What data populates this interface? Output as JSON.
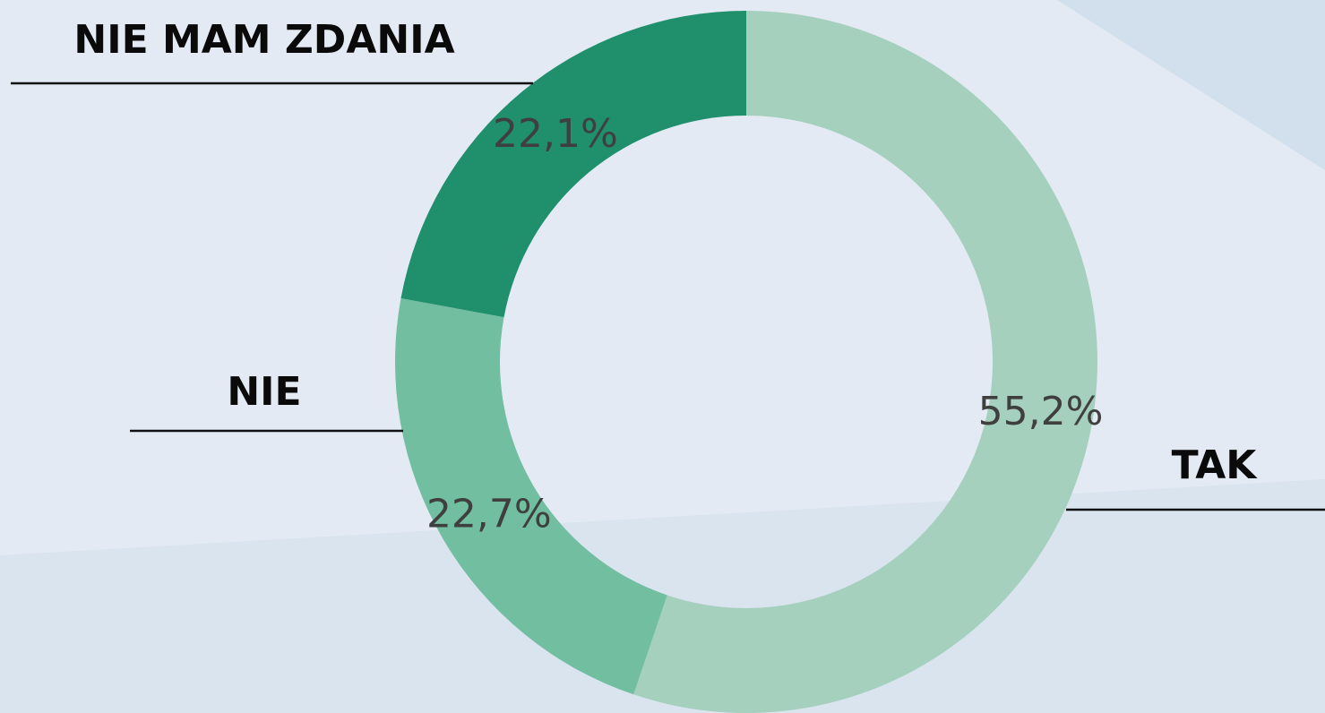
{
  "chart_data": {
    "type": "donut",
    "categories": [
      "TAK",
      "NIE",
      "NIE MAM ZDANIA"
    ],
    "values": [
      55.2,
      22.7,
      22.1
    ],
    "value_labels": [
      "55,2%",
      "22,7%",
      "22,1%"
    ],
    "colors": [
      "#a5d0bd",
      "#72bea0",
      "#1f8f6c"
    ]
  }
}
